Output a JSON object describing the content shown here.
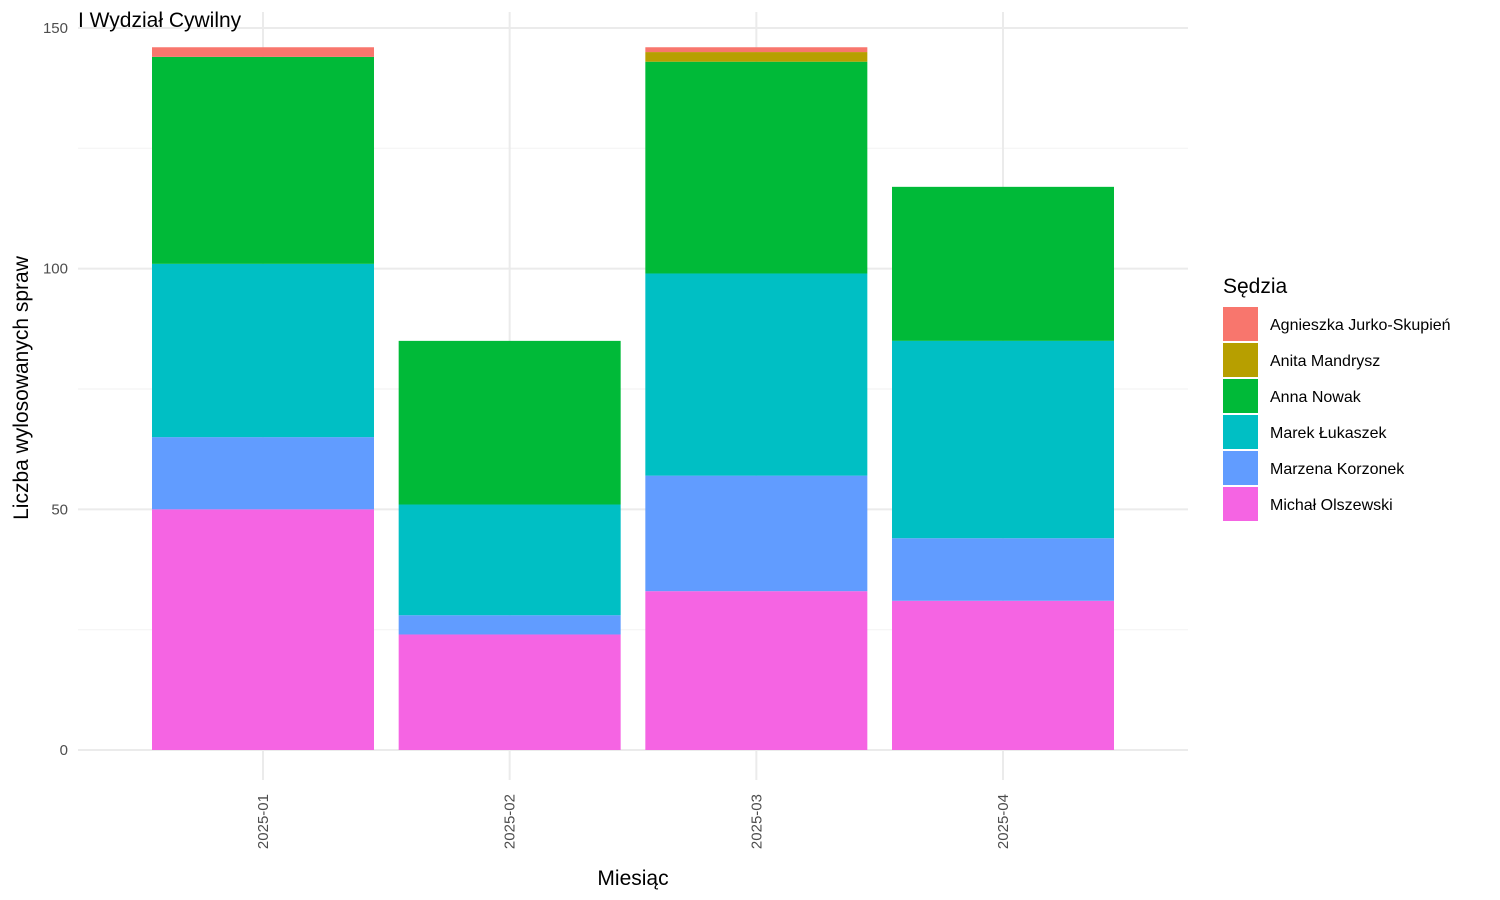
{
  "chart_data": {
    "type": "bar",
    "stacked": true,
    "title": "I Wydział Cywilny",
    "xlabel": "Miesiąc",
    "ylabel": "Liczba wylosowanych spraw",
    "categories": [
      "2025-01",
      "2025-02",
      "2025-03",
      "2025-04"
    ],
    "ylim": [
      0,
      150
    ],
    "yticks": [
      0,
      50,
      100,
      150
    ],
    "grid": true,
    "legend": {
      "title": "Sędzia",
      "position": "right"
    },
    "series": [
      {
        "name": "Agnieszka Jurko-Skupień",
        "color": "#F8766D",
        "values": [
          2,
          0,
          1,
          0
        ]
      },
      {
        "name": "Anita Mandrysz",
        "color": "#B79F00",
        "values": [
          0,
          0,
          2,
          0
        ]
      },
      {
        "name": "Anna Nowak",
        "color": "#00BA38",
        "values": [
          43,
          34,
          44,
          32
        ]
      },
      {
        "name": "Marek Łukaszek",
        "color": "#00BFC4",
        "values": [
          36,
          23,
          42,
          41
        ]
      },
      {
        "name": "Marzena Korzonek",
        "color": "#619CFF",
        "values": [
          15,
          4,
          24,
          13
        ]
      },
      {
        "name": "Michał Olszewski",
        "color": "#F564E3",
        "values": [
          50,
          24,
          33,
          31
        ]
      }
    ]
  }
}
